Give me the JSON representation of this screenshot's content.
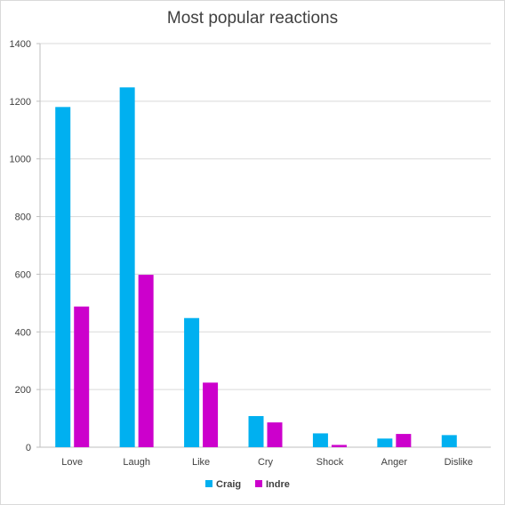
{
  "chart_data": {
    "type": "bar",
    "title": "Most popular reactions",
    "xlabel": "",
    "ylabel": "",
    "categories": [
      "Love",
      "Laugh",
      "Like",
      "Cry",
      "Shock",
      "Anger",
      "Dislike"
    ],
    "series": [
      {
        "name": "Craig",
        "values": [
          1180,
          1248,
          448,
          108,
          48,
          30,
          42
        ],
        "color": "#00b0f0"
      },
      {
        "name": "Indre",
        "values": [
          488,
          598,
          224,
          86,
          8,
          46,
          0
        ],
        "color": "#cc00cc"
      }
    ],
    "ylim": [
      0,
      1400
    ],
    "yticks": [
      "0",
      "200",
      "400",
      "600",
      "800",
      "1000",
      "1200",
      "1400"
    ],
    "grid": true,
    "legend_position": "bottom"
  }
}
